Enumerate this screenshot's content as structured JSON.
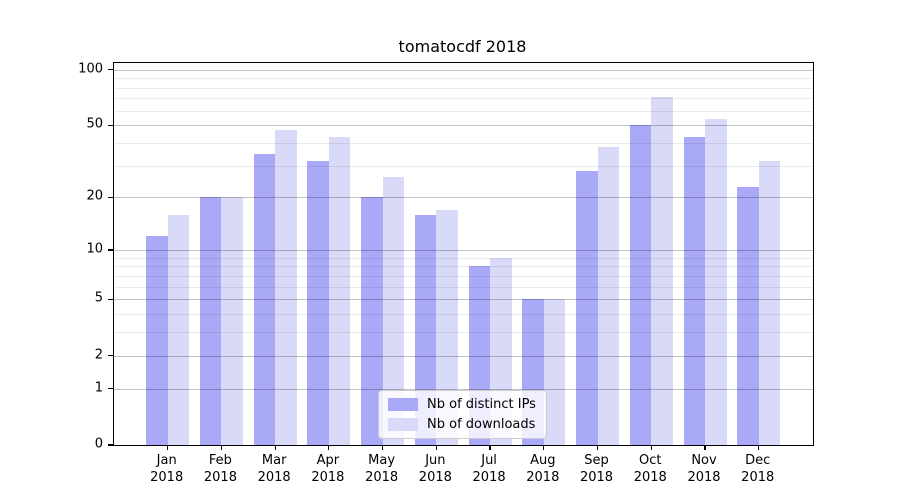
{
  "title": "tomatocdf 2018",
  "chart_data": {
    "type": "bar",
    "title": "tomatocdf 2018",
    "categories": [
      "Jan",
      "Feb",
      "Mar",
      "Apr",
      "May",
      "Jun",
      "Jul",
      "Aug",
      "Sep",
      "Oct",
      "Nov",
      "Dec"
    ],
    "x_tick_year": "2018",
    "series": [
      {
        "name": "Nb of distinct IPs",
        "color": "#a9a9f8",
        "values": [
          12,
          20,
          35,
          32,
          20,
          16,
          8,
          5,
          28,
          50,
          43,
          23
        ]
      },
      {
        "name": "Nb of downloads",
        "color": "#d9d9f8",
        "values": [
          16,
          20,
          47,
          43,
          26,
          17,
          9,
          5,
          38,
          71,
          54,
          32
        ]
      }
    ],
    "yscale": "log1p",
    "ylim": [
      0,
      109
    ],
    "ytick_labels": [
      100,
      50,
      20,
      10,
      5,
      2,
      1,
      0
    ],
    "grid_major": [
      1,
      2,
      5,
      10,
      20,
      50,
      100
    ],
    "grid_minor": [
      3,
      4,
      6,
      7,
      8,
      9,
      30,
      40,
      60,
      70,
      80,
      90
    ],
    "grid": true,
    "legend_position": "inside-lower-center",
    "xlabel": "",
    "ylabel": ""
  },
  "colors": {
    "bar_ips": "#a9a9f8",
    "bar_downloads": "#d9d9f8",
    "grid_major": "rgba(0,0,0,0.24)",
    "grid_minor": "rgba(0,0,0,0.08)",
    "spine": "#000000",
    "legend_border": "#cccccc",
    "legend_bg": "rgba(255,255,255,0.8)",
    "background": "#ffffff",
    "text": "#000000"
  },
  "legend": {
    "items": [
      {
        "label": "Nb of distinct IPs",
        "series": "ips"
      },
      {
        "label": "Nb of downloads",
        "series": "downloads"
      }
    ]
  }
}
